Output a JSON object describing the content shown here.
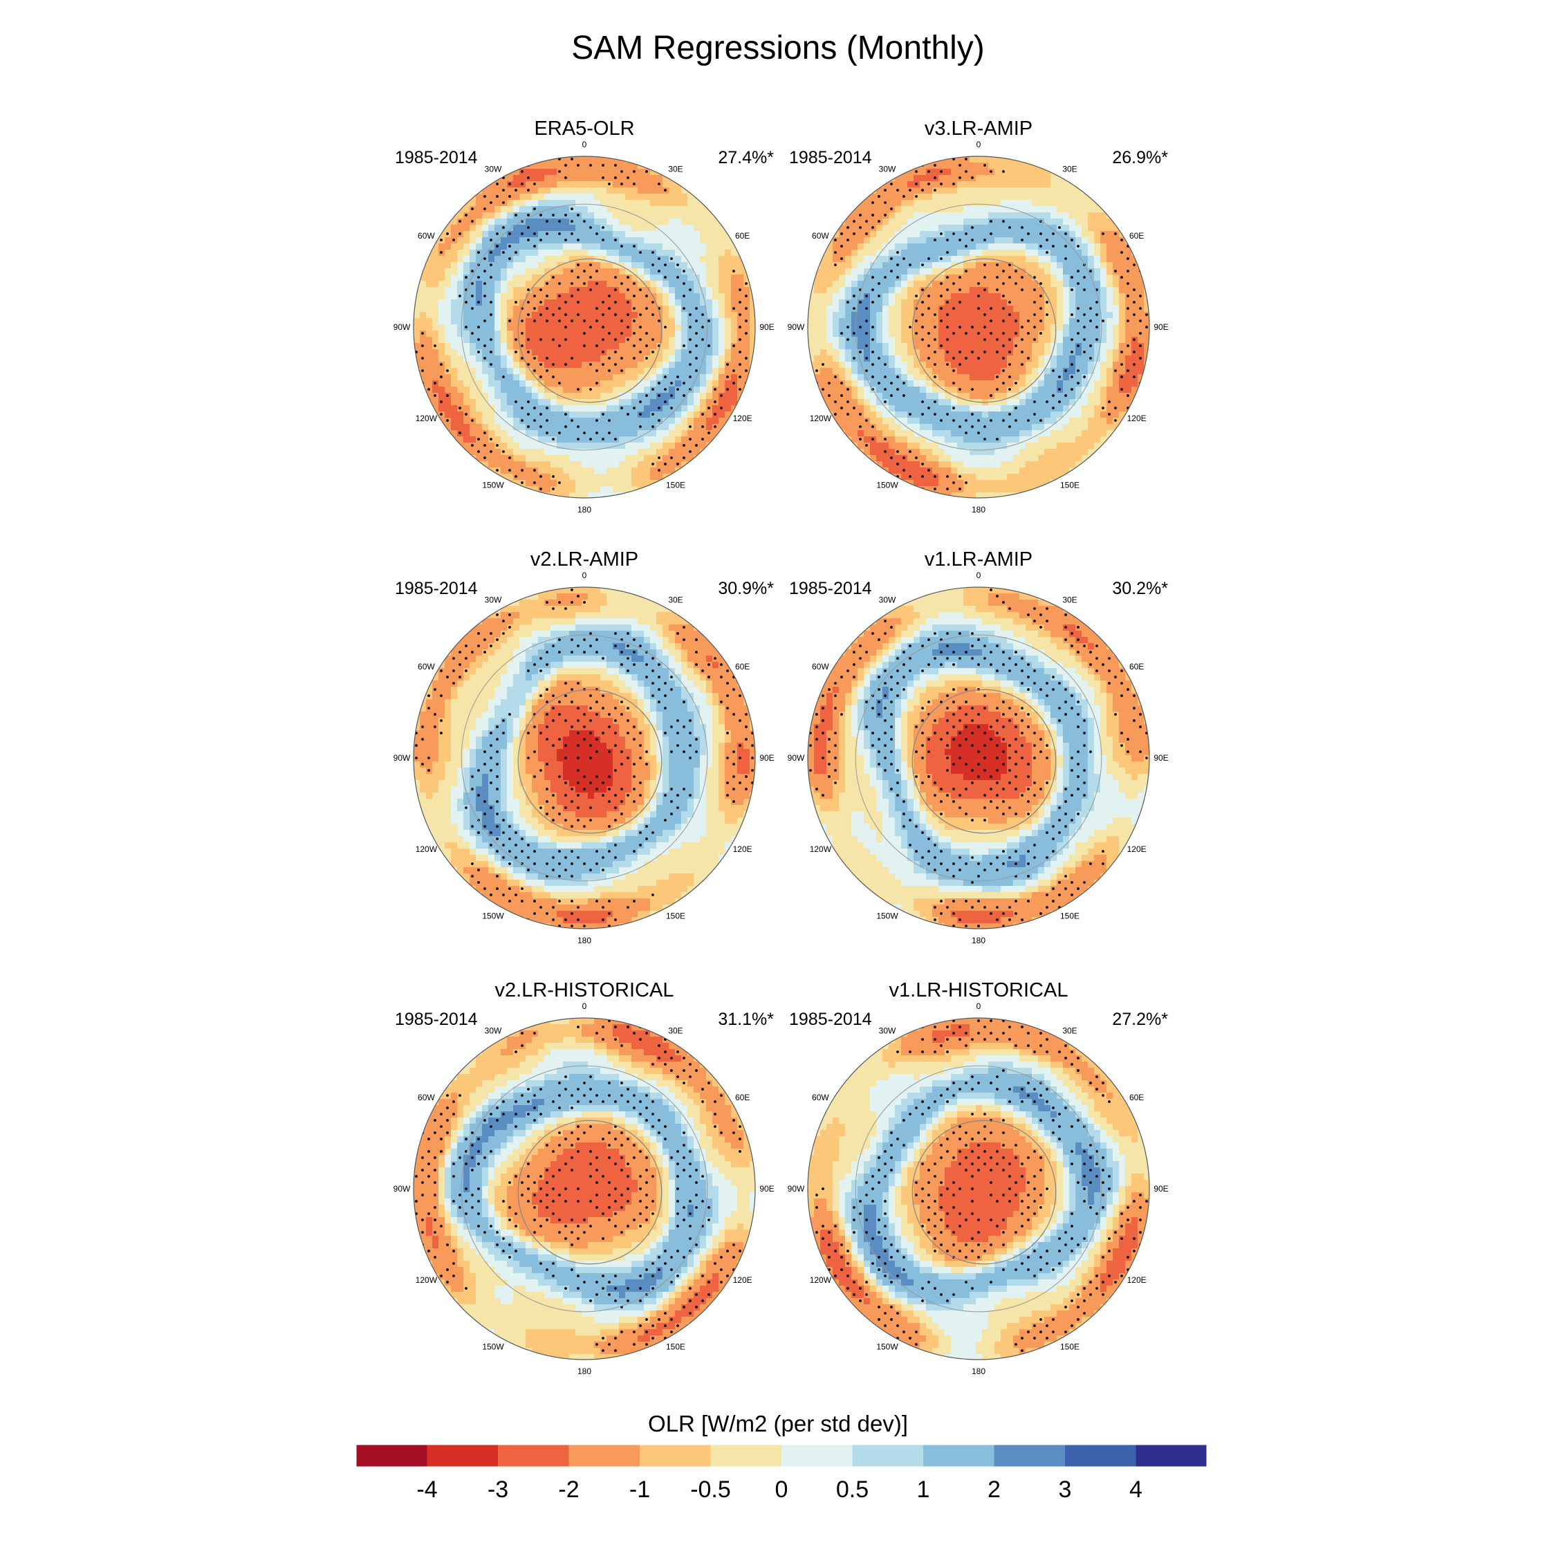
{
  "title": "SAM Regressions (Monthly)",
  "chart_data": {
    "type": "polar-contour-map",
    "variable": "OLR",
    "projection": "south polar stereographic",
    "longitude_labels": [
      "0",
      "30E",
      "60E",
      "90E",
      "120E",
      "150E",
      "180",
      "150W",
      "120W",
      "90W",
      "60W",
      "30W"
    ],
    "significance_marker": "stippling",
    "panels": [
      {
        "name": "ERA5-OLR",
        "period": "1985-2014",
        "variance_explained": "27.4%*"
      },
      {
        "name": "v3.LR-AMIP",
        "period": "1985-2014",
        "variance_explained": "26.9%*"
      },
      {
        "name": "v2.LR-AMIP",
        "period": "1985-2014",
        "variance_explained": "30.9%*"
      },
      {
        "name": "v1.LR-AMIP",
        "period": "1985-2014",
        "variance_explained": "30.2%*"
      },
      {
        "name": "v2.LR-HISTORICAL",
        "period": "1985-2014",
        "variance_explained": "31.1%*"
      },
      {
        "name": "v1.LR-HISTORICAL",
        "period": "1985-2014",
        "variance_explained": "27.2%*"
      }
    ],
    "colorbar": {
      "title": "OLR [W/m2 (per std dev)]",
      "tick_labels": [
        "-4",
        "-3",
        "-2",
        "-1",
        "-0.5",
        "0",
        "0.5",
        "1",
        "2",
        "3",
        "4"
      ],
      "colors": [
        "#a50f26",
        "#d62f26",
        "#ee6441",
        "#f89a5a",
        "#fdc779",
        "#f5e5a9",
        "#e2f2f1",
        "#b4dbea",
        "#88bddb",
        "#5a8ec2",
        "#3e63ad",
        "#2d2e8d"
      ]
    }
  }
}
